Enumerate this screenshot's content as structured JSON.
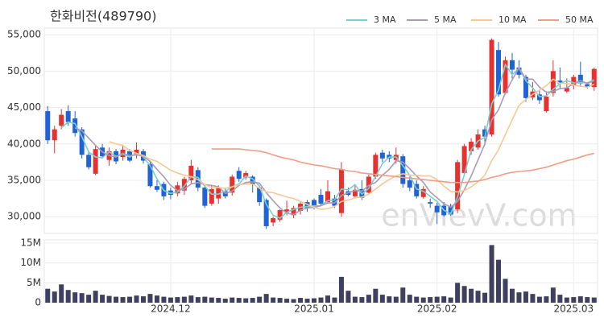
{
  "chart_data": {
    "type": "candlestick",
    "title": "한화비전(489790)",
    "watermark": "enVievV.com",
    "up_color": "#e8312f",
    "down_color": "#1f63d6",
    "grid": true,
    "categories": [
      null,
      null,
      null,
      null,
      null,
      null,
      null,
      null,
      null,
      null,
      null,
      null,
      null,
      null,
      null,
      null,
      null,
      null,
      "2024.12",
      null,
      null,
      null,
      null,
      null,
      null,
      null,
      null,
      null,
      null,
      null,
      null,
      null,
      null,
      null,
      null,
      null,
      null,
      null,
      null,
      "2025.01",
      null,
      null,
      null,
      null,
      null,
      null,
      null,
      null,
      null,
      null,
      null,
      null,
      null,
      null,
      null,
      null,
      null,
      "2025.02",
      null,
      null,
      null,
      null,
      null,
      null,
      null,
      null,
      null,
      null,
      null,
      null,
      null,
      null,
      null,
      null,
      null,
      null,
      null,
      "2025.03",
      null,
      null,
      null
    ],
    "open": [
      44500,
      40500,
      42500,
      44500,
      43500,
      42000,
      38500,
      35900,
      39500,
      37800,
      39000,
      38200,
      39000,
      38400,
      39000,
      37200,
      34200,
      34500,
      33600,
      33200,
      33600,
      35000,
      36400,
      34000,
      31800,
      32500,
      33500,
      33300,
      36300,
      35400,
      35500,
      34000,
      32300,
      29200,
      29600,
      30600,
      30200,
      30800,
      32000,
      32300,
      33000,
      32000,
      32500,
      30500,
      33500,
      32800,
      33800,
      33300,
      35500,
      38800,
      38500,
      37800,
      38300,
      35000,
      34500,
      32700,
      32000,
      31500,
      31500,
      31500,
      31000,
      36000,
      39000,
      39500,
      42000,
      41300,
      52900,
      47000,
      51500,
      50500,
      49200,
      46400,
      46800,
      44500,
      47000,
      48700,
      47200,
      48000,
      49500,
      48200,
      47800
    ],
    "high": [
      45200,
      42500,
      44800,
      45300,
      44500,
      42300,
      39000,
      39800,
      40000,
      39500,
      39300,
      39700,
      39300,
      40200,
      39300,
      37500,
      35000,
      34800,
      34000,
      34800,
      35500,
      37800,
      36800,
      34300,
      34300,
      34300,
      34000,
      35800,
      36800,
      36300,
      35700,
      34300,
      32500,
      30000,
      31000,
      32200,
      31500,
      32000,
      32300,
      32500,
      33800,
      35000,
      33000,
      37500,
      34000,
      34500,
      35000,
      35800,
      38800,
      39200,
      39000,
      39500,
      38600,
      35500,
      35000,
      34200,
      32500,
      31900,
      32000,
      31800,
      37800,
      40000,
      40800,
      42000,
      42500,
      54500,
      54000,
      52000,
      52500,
      51500,
      49500,
      48500,
      47300,
      47000,
      51500,
      50500,
      49000,
      49500,
      51300,
      48500,
      50500
    ],
    "low": [
      40000,
      38700,
      42000,
      42500,
      41000,
      38000,
      36500,
      35700,
      38000,
      37000,
      37200,
      37700,
      37500,
      38000,
      37300,
      34000,
      33400,
      32300,
      32400,
      32800,
      33000,
      34600,
      33500,
      31200,
      31500,
      31800,
      32500,
      32900,
      34800,
      35100,
      33300,
      31500,
      28300,
      28700,
      29300,
      30200,
      29800,
      30300,
      30700,
      31000,
      31500,
      31800,
      31200,
      30000,
      32800,
      32500,
      32300,
      33000,
      35200,
      37500,
      37500,
      37300,
      34000,
      33500,
      32500,
      32500,
      31200,
      29000,
      30000,
      30100,
      30500,
      35800,
      38500,
      39200,
      39800,
      41000,
      46500,
      46800,
      49000,
      49000,
      45800,
      46000,
      45500,
      44300,
      46500,
      47500,
      47000,
      47500,
      48000,
      47600,
      47300
    ],
    "close": [
      40500,
      42000,
      44000,
      43000,
      41500,
      38500,
      36800,
      39300,
      38300,
      39000,
      37600,
      39200,
      37700,
      39200,
      37700,
      34200,
      33700,
      32800,
      33000,
      34300,
      35200,
      37000,
      34000,
      31500,
      33800,
      34000,
      32800,
      35500,
      35200,
      36000,
      34500,
      32000,
      28700,
      29800,
      30900,
      31000,
      31200,
      31800,
      31200,
      31400,
      31800,
      33500,
      31500,
      36500,
      33000,
      33700,
      32600,
      35500,
      38500,
      38000,
      38000,
      38500,
      34500,
      34000,
      32800,
      33800,
      31800,
      30600,
      30200,
      30300,
      37500,
      39700,
      40300,
      41300,
      41000,
      54300,
      46800,
      51500,
      50200,
      49500,
      46300,
      47200,
      46000,
      46500,
      50000,
      48300,
      47700,
      49200,
      48300,
      47800,
      50300
    ],
    "series": [
      {
        "name": "3 MA",
        "color": "#79cfd0",
        "values": [
          null,
          null,
          42200,
          43000,
          42800,
          41000,
          38900,
          38200,
          38100,
          38900,
          38300,
          38600,
          38200,
          38700,
          38200,
          37000,
          35200,
          33600,
          33200,
          33400,
          34200,
          35500,
          35400,
          34200,
          33100,
          33100,
          33500,
          34100,
          34500,
          35600,
          35200,
          34200,
          31700,
          30200,
          29800,
          30600,
          31000,
          31300,
          31400,
          31500,
          31500,
          32200,
          32300,
          33800,
          33700,
          34400,
          33100,
          33900,
          35500,
          37300,
          38200,
          38200,
          37000,
          35700,
          33800,
          33500,
          32800,
          32100,
          30900,
          30400,
          32700,
          35800,
          39200,
          40400,
          40900,
          45500,
          47400,
          50900,
          49500,
          50400,
          48700,
          47700,
          46500,
          46600,
          47500,
          48300,
          48700,
          48400,
          48400,
          48400,
          48800
        ]
      },
      {
        "name": "5 MA",
        "color": "#a99bb8",
        "values": [
          null,
          null,
          null,
          null,
          42200,
          41800,
          40800,
          39800,
          38900,
          38400,
          38200,
          38700,
          38400,
          38500,
          38300,
          37600,
          36500,
          35500,
          34300,
          33600,
          33800,
          34500,
          34700,
          34400,
          34300,
          34100,
          33200,
          33500,
          34300,
          34700,
          34800,
          34600,
          33300,
          32200,
          31200,
          30500,
          30300,
          30900,
          31200,
          31300,
          31500,
          31900,
          31900,
          32900,
          33300,
          33600,
          33500,
          34300,
          34700,
          35700,
          36500,
          37700,
          37500,
          36600,
          35600,
          34700,
          33400,
          32600,
          31800,
          31300,
          32100,
          33700,
          35600,
          37800,
          40000,
          43300,
          44700,
          47000,
          48800,
          50500,
          48900,
          48900,
          47800,
          47100,
          47200,
          47600,
          47700,
          48300,
          48700,
          48300,
          48700
        ]
      },
      {
        "name": "10 MA",
        "color": "#f5c895",
        "values": [
          null,
          null,
          null,
          null,
          null,
          null,
          null,
          null,
          null,
          40300,
          40000,
          39800,
          39100,
          38700,
          38400,
          37900,
          37600,
          37000,
          36400,
          36000,
          35700,
          35500,
          35100,
          34400,
          34000,
          34000,
          33900,
          34100,
          34400,
          34500,
          34500,
          33900,
          33400,
          33300,
          33000,
          32700,
          32500,
          32100,
          31700,
          31300,
          31000,
          31100,
          31400,
          32100,
          32300,
          32600,
          32700,
          33100,
          33800,
          34500,
          35100,
          35600,
          35900,
          35700,
          35700,
          35600,
          35600,
          35100,
          34200,
          33500,
          33400,
          33600,
          34100,
          34800,
          35700,
          37700,
          39200,
          41300,
          43300,
          45300,
          46100,
          46800,
          47400,
          48000,
          48900,
          48300,
          48300,
          48100,
          47900,
          47800,
          48200
        ]
      },
      {
        "name": "50 MA",
        "color": "#f09c86",
        "values": [
          null,
          null,
          null,
          null,
          null,
          null,
          null,
          null,
          null,
          null,
          null,
          null,
          null,
          null,
          null,
          null,
          null,
          null,
          null,
          null,
          null,
          null,
          null,
          null,
          39300,
          39300,
          39300,
          39300,
          39300,
          39200,
          39100,
          39000,
          38800,
          38500,
          38200,
          38000,
          37800,
          37500,
          37300,
          37100,
          37000,
          36800,
          36600,
          36500,
          36300,
          36200,
          36000,
          35900,
          35800,
          35700,
          35600,
          35500,
          35400,
          35300,
          35200,
          35100,
          35000,
          34900,
          34800,
          34700,
          34700,
          34700,
          34800,
          34900,
          35100,
          35400,
          35600,
          35900,
          36100,
          36200,
          36300,
          36400,
          36600,
          36800,
          37100,
          37400,
          37700,
          37900,
          38200,
          38500,
          38700
        ]
      }
    ],
    "ylim": [
      27700,
      55900
    ],
    "yticks": [
      {
        "value": 30000,
        "label": "30,000"
      },
      {
        "value": 35000,
        "label": "35,000"
      },
      {
        "value": 40000,
        "label": "40,000"
      },
      {
        "value": 45000,
        "label": "45,000"
      },
      {
        "value": 50000,
        "label": "50,000"
      },
      {
        "value": 55000,
        "label": "55,000"
      }
    ],
    "volume": {
      "color": "#3f3f5f",
      "ylim": [
        0,
        15.8
      ],
      "yticks": [
        0,
        {
          "value": 5,
          "label": "5M"
        },
        {
          "value": 10,
          "label": "10M"
        },
        {
          "value": 15,
          "label": "15M"
        }
      ],
      "values": [
        3.5,
        2.8,
        4.6,
        3.2,
        2.6,
        2.4,
        2.0,
        3.0,
        2.0,
        1.7,
        1.5,
        1.4,
        1.5,
        1.8,
        1.6,
        2.2,
        1.8,
        1.5,
        1.3,
        1.4,
        1.5,
        1.8,
        1.4,
        1.5,
        1.3,
        1.2,
        1.0,
        1.3,
        1.2,
        1.1,
        1.2,
        1.5,
        2.2,
        1.3,
        1.2,
        1.0,
        0.9,
        1.2,
        1.0,
        1.1,
        1.3,
        1.8,
        1.3,
        6.5,
        3.0,
        1.5,
        1.4,
        2.0,
        3.5,
        2.0,
        1.6,
        1.5,
        3.8,
        2.0,
        1.5,
        1.3,
        1.4,
        1.5,
        1.6,
        1.3,
        5.0,
        4.2,
        3.5,
        3.0,
        2.5,
        14.5,
        10.8,
        6.0,
        3.5,
        2.6,
        2.8,
        2.2,
        1.5,
        1.6,
        3.8,
        2.0,
        1.3,
        1.4,
        1.6,
        1.4,
        1.3
      ]
    }
  }
}
